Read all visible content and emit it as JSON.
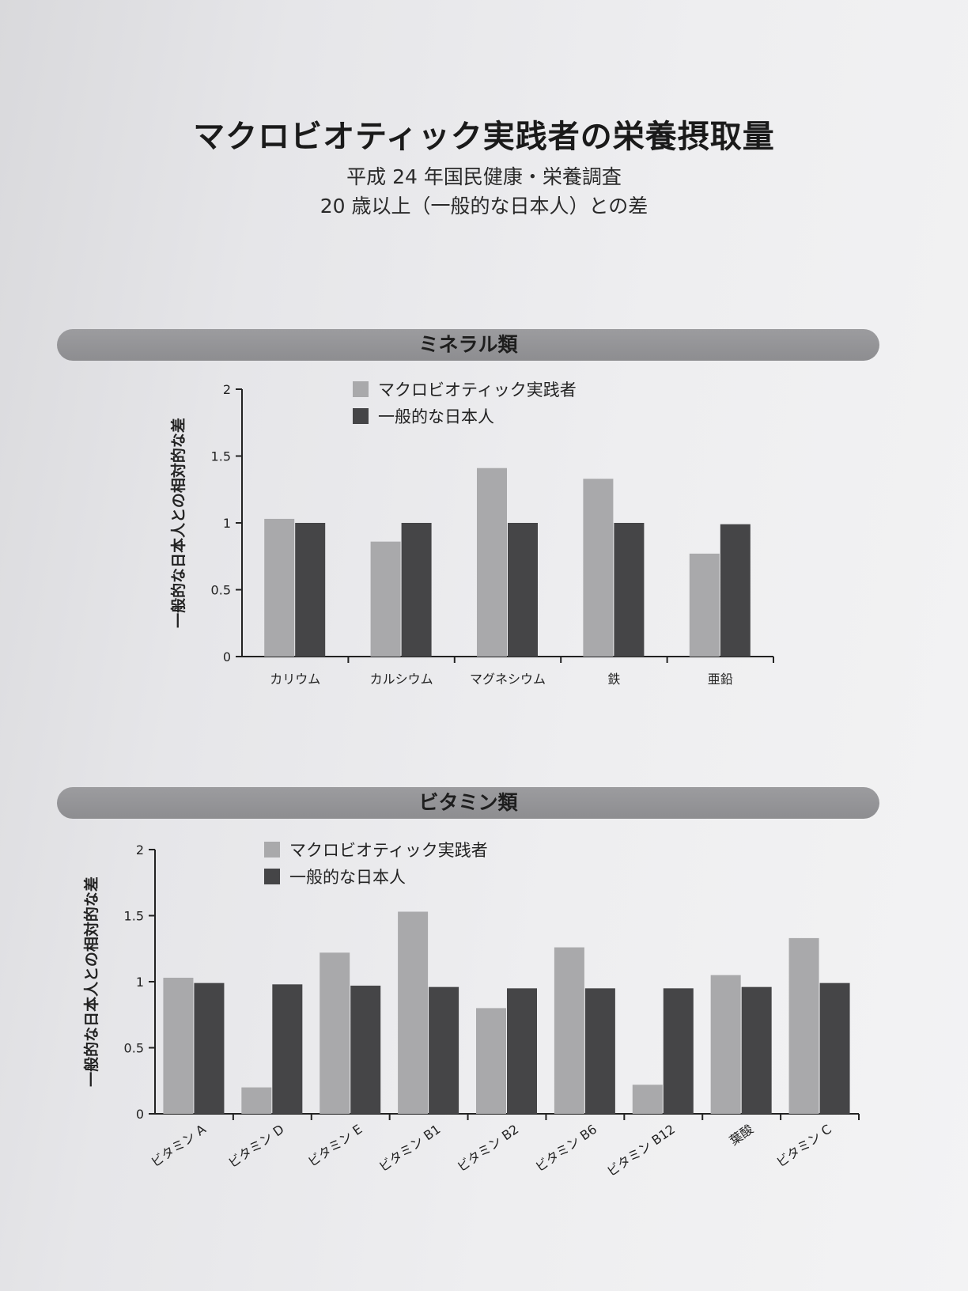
{
  "title": "マクロビオティック実践者の栄養摂取量",
  "subtitle_line1": "平成 24 年国民健康・栄養調査",
  "subtitle_line2": "20 歳以上（一般的な日本人）との差",
  "colors": {
    "macro": "#a9a9ab",
    "general": "#454547"
  },
  "chart_data": [
    {
      "type": "bar",
      "section_title": "ミネラル類",
      "ylabel": "一般的な日本人との相対的な差",
      "ylim": [
        0,
        2
      ],
      "yticks": [
        "0",
        "0.5",
        "1",
        "1.5",
        "2"
      ],
      "legend": [
        "マクロビオティック実践者",
        "一般的な日本人"
      ],
      "categories": [
        "カリウム",
        "カルシウム",
        "マグネシウム",
        "鉄",
        "亜鉛"
      ],
      "series": [
        {
          "name": "マクロビオティック実践者",
          "values": [
            1.03,
            0.86,
            1.41,
            1.33,
            0.77
          ]
        },
        {
          "name": "一般的な日本人",
          "values": [
            1.0,
            1.0,
            1.0,
            1.0,
            0.99
          ]
        }
      ]
    },
    {
      "type": "bar",
      "section_title": "ビタミン類",
      "ylabel": "一般的な日本人との相対的な差",
      "ylim": [
        0,
        2
      ],
      "yticks": [
        "0",
        "0.5",
        "1",
        "1.5",
        "2"
      ],
      "legend": [
        "マクロビオティック実践者",
        "一般的な日本人"
      ],
      "categories": [
        "ビタミン A",
        "ビタミン D",
        "ビタミン E",
        "ビタミン B1",
        "ビタミン B2",
        "ビタミン B6",
        "ビタミン B12",
        "葉酸",
        "ビタミン C"
      ],
      "series": [
        {
          "name": "マクロビオティック実践者",
          "values": [
            1.03,
            0.2,
            1.22,
            1.53,
            0.8,
            1.26,
            0.22,
            1.05,
            1.33
          ]
        },
        {
          "name": "一般的な日本人",
          "values": [
            0.99,
            0.98,
            0.97,
            0.96,
            0.95,
            0.95,
            0.95,
            0.96,
            0.99
          ]
        }
      ]
    }
  ]
}
